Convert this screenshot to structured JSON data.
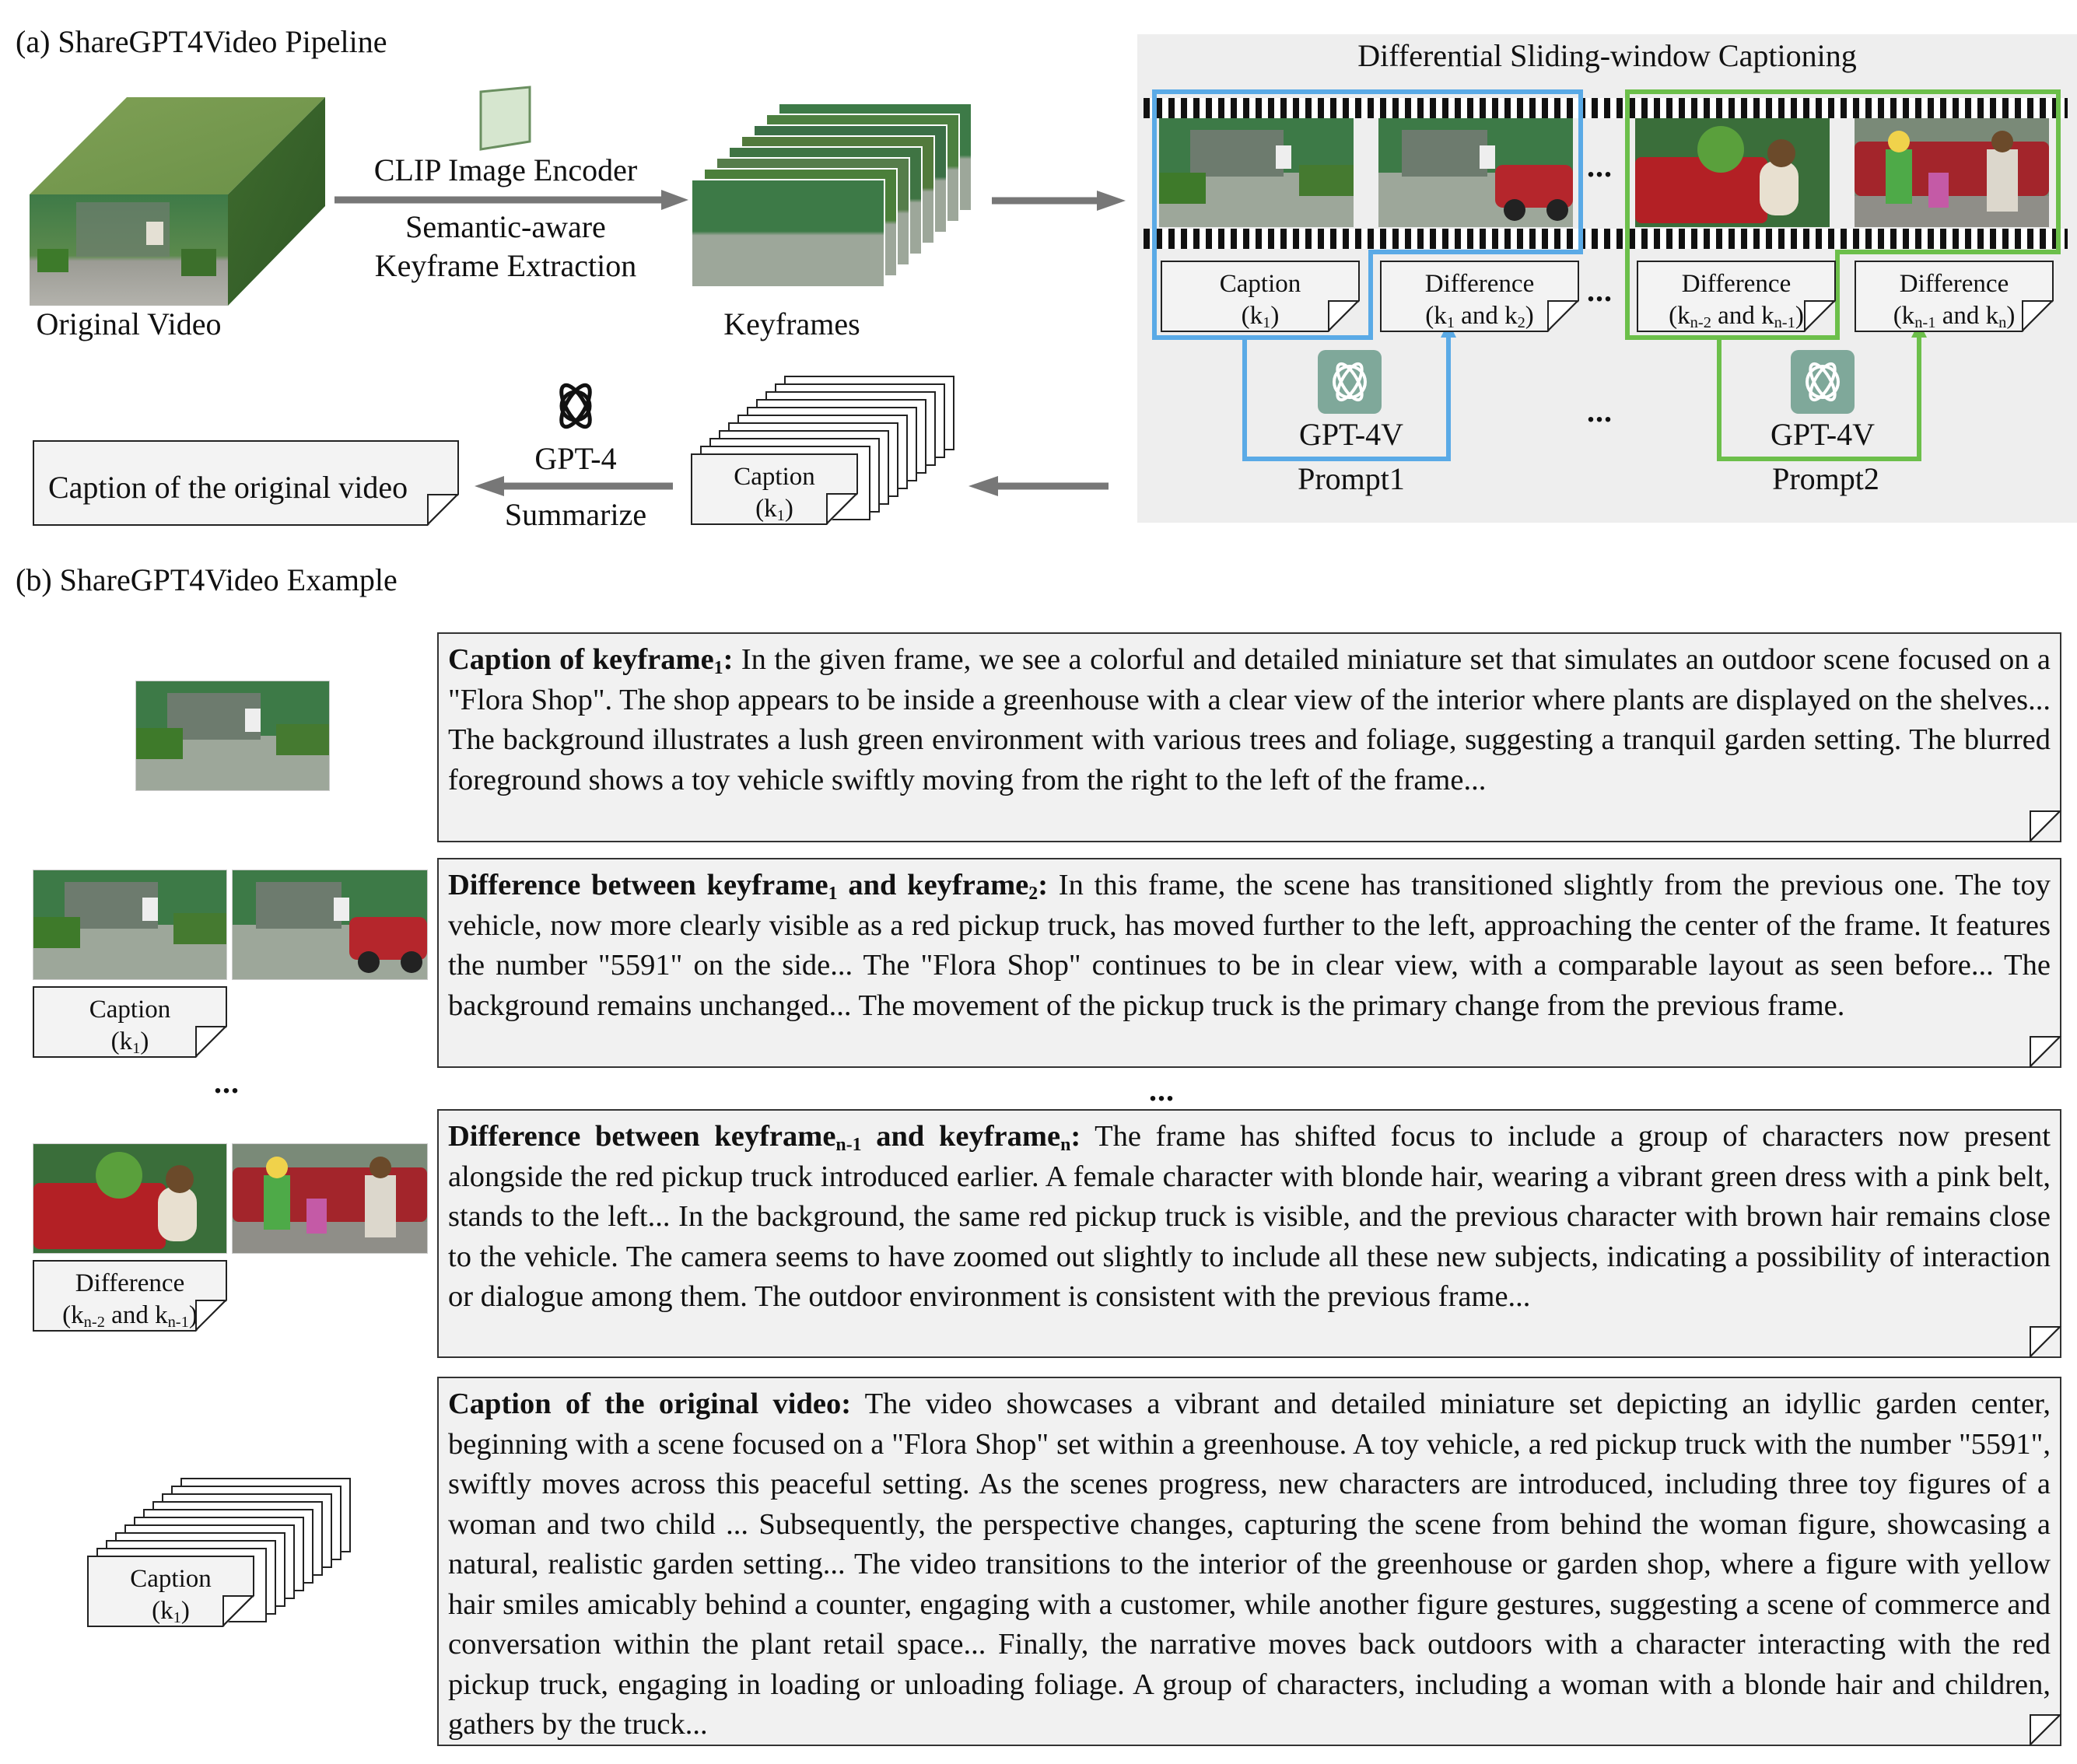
{
  "section_a": {
    "title": "(a) ShareGPT4Video Pipeline",
    "original_video_label": "Original Video",
    "clip_encoder_label": "CLIP Image Encoder",
    "extraction_line1": "Semantic-aware",
    "extraction_line2": "Keyframe Extraction",
    "keyframes_label": "Keyframes",
    "panel_title": "Differential Sliding-window Captioning",
    "dots": "...",
    "notes": [
      {
        "line1": "Caption",
        "line2_pre": "(k",
        "line2_sub": "1",
        "line2_post": ")"
      },
      {
        "line1": "Difference",
        "line2_pre": "(k",
        "line2_sub": "1",
        "line2_mid": " and k",
        "line2_sub2": "2",
        "line2_post": ")"
      },
      {
        "line1": "Difference",
        "line2_pre": "(k",
        "line2_sub": "n-2",
        "line2_mid": " and k",
        "line2_sub2": "n-1",
        "line2_post": ")"
      },
      {
        "line1": "Difference",
        "line2_pre": "(k",
        "line2_sub": "n-1",
        "line2_mid": " and k",
        "line2_sub2": "n",
        "line2_post": ")"
      }
    ],
    "gpt4v_label": "GPT-4V",
    "prompt1_label": "Prompt1",
    "prompt2_label": "Prompt2",
    "gpt4_label": "GPT-4",
    "summarize_label": "Summarize",
    "caption_original_label": "Caption of the original video",
    "stack_note": {
      "line1": "Caption",
      "line2_pre": "(k",
      "line2_sub": "1",
      "line2_post": ")"
    }
  },
  "section_b": {
    "title": "(b) ShareGPT4Video Example",
    "dots": "...",
    "box1": {
      "bold_pre": "Caption of keyframe",
      "bold_sub": "1",
      "bold_post": ":",
      "text": " In the given frame, we see a colorful and detailed miniature set that simulates an outdoor scene focused on a \"Flora Shop\". The shop appears to be inside a greenhouse with a clear view of the interior where plants are displayed on the shelves... The background illustrates a lush green environment with various trees and foliage, suggesting a tranquil garden setting. The blurred foreground shows a toy vehicle swiftly moving from the right to the left of the frame..."
    },
    "box2": {
      "bold_pre": "Difference between keyframe",
      "bold_sub": "1",
      "bold_mid": " and keyframe",
      "bold_sub2": "2",
      "bold_post": ":",
      "text": " In this frame, the scene has transitioned slightly from the previous one. The toy vehicle, now more clearly visible as a red pickup truck, has moved further to the left, approaching the center of the frame. It features the number \"5591\" on the side... The \"Flora Shop\" continues to be in clear view, with a comparable layout as seen before... The background remains unchanged... The movement of the pickup truck is the primary change from the previous frame."
    },
    "box3": {
      "bold_pre": "Difference between keyframe",
      "bold_sub": "n-1",
      "bold_mid": " and keyframe",
      "bold_sub2": "n",
      "bold_post": ":",
      "text": " The frame has shifted focus to include a group of characters now present alongside the red pickup truck introduced earlier. A female character with blonde hair, wearing a vibrant green dress with a pink belt, stands to the left... In the background, the same red pickup truck is visible, and the previous character with brown hair remains close to the vehicle. The camera seems to have zoomed out slightly to include all these new subjects, indicating a possibility of interaction or dialogue among them. The outdoor environment is consistent with the previous frame..."
    },
    "box4": {
      "bold_pre": "Caption of the original video:",
      "text": " The video showcases a vibrant and detailed miniature set depicting an idyllic garden center, beginning with a scene focused on a \"Flora Shop\" set within a greenhouse. A toy vehicle, a red pickup truck with the number \"5591\", swiftly moves across this peaceful setting. As the scenes progress, new characters are introduced, including three toy figures of a woman and two child ... Subsequently, the perspective changes, capturing the scene from behind the woman figure, showcasing a natural, realistic garden setting... The video transitions to the interior of the greenhouse or garden shop, where a figure with yellow hair smiles amicably behind a counter, engaging with a customer, while another figure gestures, suggesting a scene of commerce and conversation within the plant retail space... Finally, the narrative moves back outdoors with a character interacting with the red pickup truck, engaging in loading or unloading foliage. A group of characters, including a woman with a blonde hair and children, gathers by the truck..."
    },
    "note_caption": {
      "line1": "Caption",
      "line2_pre": "(k",
      "line2_sub": "1",
      "line2_post": ")"
    },
    "note_difference": {
      "line1": "Difference",
      "line2_pre": "(k",
      "line2_sub": "n-2",
      "line2_mid": " and k",
      "line2_sub2": "n-1",
      "line2_post": ")"
    },
    "note_stack": {
      "line1": "Caption",
      "line2_pre": "(k",
      "line2_sub": "1",
      "line2_post": ")"
    }
  },
  "colors": {
    "blue_window": "#5aaae6",
    "green_window": "#6cbf4a",
    "panel_bg": "#eeeeee",
    "arrow_gray": "#777777",
    "gpt_logo_bg": "#7fa89a"
  }
}
